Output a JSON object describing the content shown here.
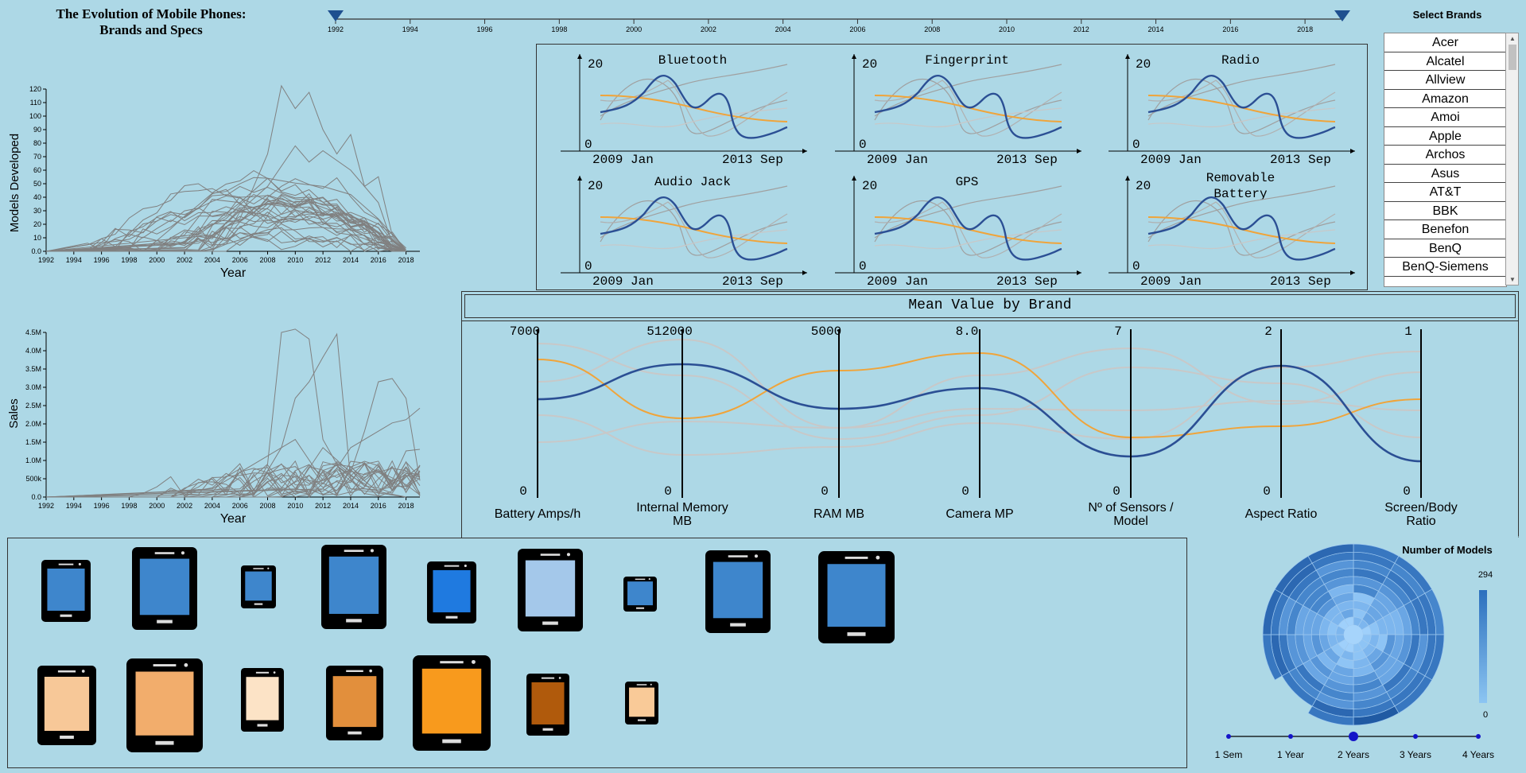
{
  "title": {
    "line1": "The Evolution of Mobile Phones:",
    "line2": "Brands and Specs"
  },
  "timeline": {
    "years": [
      "1992",
      "1994",
      "1996",
      "1998",
      "2000",
      "2002",
      "2004",
      "2006",
      "2008",
      "2010",
      "2012",
      "2014",
      "2016",
      "2018"
    ],
    "range_start_year": 1992,
    "range_end_year": 2019
  },
  "brands": {
    "title": "Select Brands",
    "items": [
      "Acer",
      "Alcatel",
      "Allview",
      "Amazon",
      "Amoi",
      "Apple",
      "Archos",
      "Asus",
      "AT&T",
      "BBK",
      "Benefon",
      "BenQ",
      "BenQ-Siemens"
    ]
  },
  "models_chart": {
    "ylabel": "Models Developed",
    "xlabel": "Year",
    "yticks": [
      "0.0",
      "10",
      "20",
      "30",
      "40",
      "50",
      "60",
      "70",
      "80",
      "90",
      "100",
      "110",
      "120"
    ],
    "xticks": [
      "1992",
      "1994",
      "1996",
      "1998",
      "2000",
      "2002",
      "2004",
      "2006",
      "2008",
      "2010",
      "2012",
      "2014",
      "2016",
      "2018"
    ]
  },
  "sales_chart": {
    "ylabel": "Sales",
    "xlabel": "Year",
    "yticks": [
      "0.0",
      "500k",
      "1.0M",
      "1.5M",
      "2.0M",
      "2.5M",
      "3.0M",
      "3.5M",
      "4.0M",
      "4.5M"
    ],
    "xticks": [
      "1992",
      "1994",
      "1996",
      "1998",
      "2000",
      "2002",
      "2004",
      "2006",
      "2008",
      "2010",
      "2012",
      "2014",
      "2016",
      "2018"
    ]
  },
  "features": {
    "ymax": "20",
    "ymin": "0",
    "xstart": "2009 Jan",
    "xend": "2013 Sep",
    "items": [
      {
        "title": [
          "Bluetooth"
        ]
      },
      {
        "title": [
          "Fingerprint"
        ]
      },
      {
        "title": [
          "Radio"
        ]
      },
      {
        "title": [
          "Audio Jack"
        ]
      },
      {
        "title": [
          "GPS"
        ]
      },
      {
        "title": [
          "Removable",
          "Battery"
        ]
      }
    ]
  },
  "parallel": {
    "title": "Mean Value by Brand",
    "axes": [
      {
        "label": [
          "Battery Amps/h"
        ],
        "max": "7000",
        "min": "0"
      },
      {
        "label": [
          "Internal Memory",
          "MB"
        ],
        "max": "512000",
        "min": "0"
      },
      {
        "label": [
          "RAM MB"
        ],
        "max": "5000",
        "min": "0"
      },
      {
        "label": [
          "Camera MP"
        ],
        "max": "8.0",
        "min": "0"
      },
      {
        "label": [
          "Nº of Sensors /",
          "Model"
        ],
        "max": "7",
        "min": "0"
      },
      {
        "label": [
          "Aspect Ratio"
        ],
        "max": "2",
        "min": "0"
      },
      {
        "label": [
          "Screen/Body",
          "Ratio"
        ],
        "max": "1",
        "min": "0"
      }
    ]
  },
  "radial": {
    "title": "Number of Models",
    "legend_max": "294",
    "legend_min": "0",
    "periods": [
      "1 Sem",
      "1 Year",
      "2 Years",
      "3 Years",
      "4 Years"
    ],
    "selected_index": 2
  },
  "colors": {
    "background": "#add8e6",
    "blue_line": "#2b4f94",
    "orange_line": "#f0a43a",
    "gray_line": "#808080",
    "light_gray": "#c8c8c8",
    "timeline_marker": "#1e4f8f"
  }
}
